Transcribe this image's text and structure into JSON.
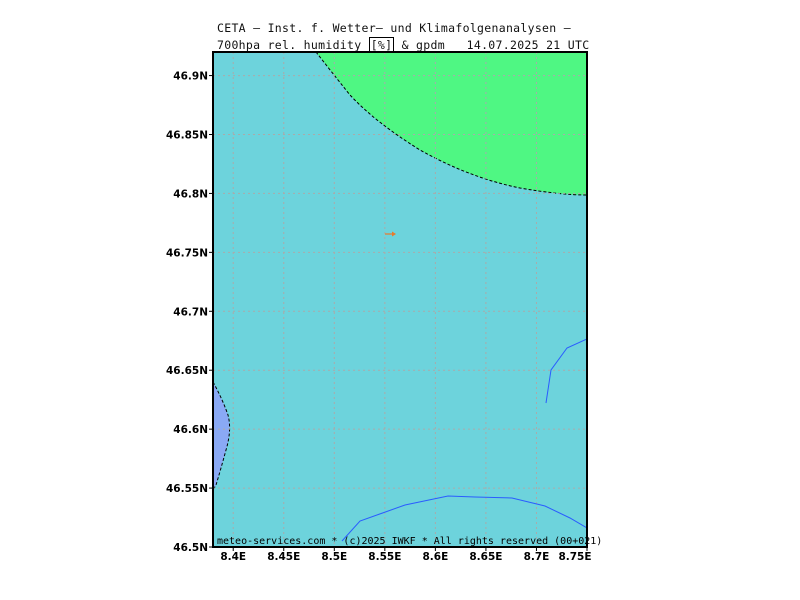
{
  "header": {
    "line1": "CETA — Inst. f. Wetter— und Klimafolgenanalysen —",
    "line2_parts": [
      "700hpa_rel._humidity_",
      "[%]",
      "_&_gpdm",
      "14.07.2025 21 UTC"
    ]
  },
  "map": {
    "lat_ticks": [
      "46.9N",
      "46.85N",
      "46.8N",
      "46.75N",
      "46.7N",
      "46.65N",
      "46.6N",
      "46.55N",
      "46.5N"
    ],
    "lon_ticks": [
      "8.4E",
      "8.45E",
      "8.5E",
      "8.55E",
      "8.6E",
      "8.65E",
      "8.7E",
      "8.75E"
    ],
    "lat_range": [
      46.5,
      46.92
    ],
    "lon_range": [
      8.38,
      8.75
    ],
    "footer": "meteo-services.com * (c)2025 IWKF * All rights reserved (00+021)",
    "grid": true,
    "colors": {
      "background_field": "#6dd3dc",
      "high_humidity_field": "#4ff783",
      "low_humidity_field": "#8aa9f5",
      "border_line": "#2a5cff",
      "marker": "#e87a2a"
    }
  }
}
